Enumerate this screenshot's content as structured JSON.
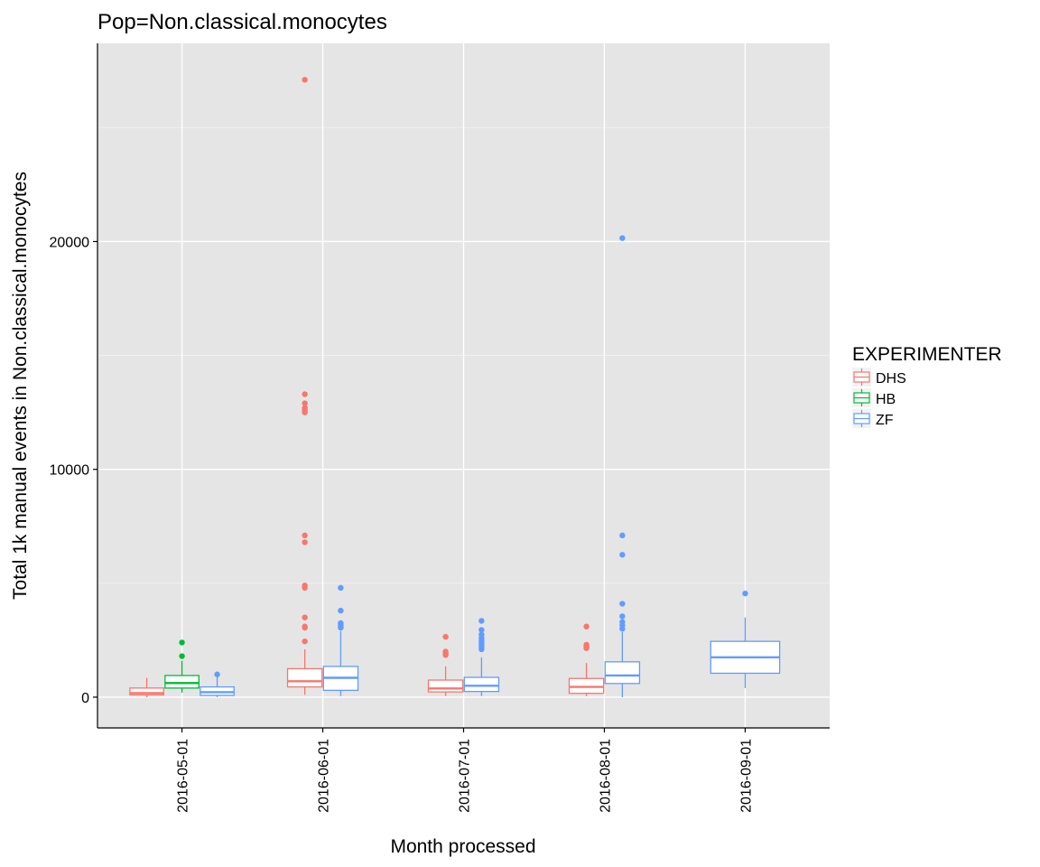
{
  "chart_data": {
    "type": "box",
    "title": "Pop=Non.classical.monocytes",
    "xlabel": "Month processed",
    "ylabel": "Total 1k manual events in Non.classical.monocytes",
    "categories": [
      "2016-05-01",
      "2016-06-01",
      "2016-07-01",
      "2016-08-01",
      "2016-09-01"
    ],
    "ylim": [
      -1350,
      28700
    ],
    "yticks": [
      0,
      10000,
      20000
    ],
    "y_gridlines_minor": [
      5000,
      15000,
      25000
    ],
    "grid": true,
    "legend": {
      "title": "EXPERIMENTER",
      "position": "right",
      "entries": [
        "DHS",
        "HB",
        "ZF"
      ]
    },
    "colors": {
      "DHS": "#F8766D",
      "HB": "#00BA38",
      "ZF": "#619CFF"
    },
    "series": [
      {
        "name": "DHS",
        "boxes": [
          {
            "category": "2016-05-01",
            "min": 0,
            "q1": 100,
            "median": 180,
            "q3": 400,
            "max": 850,
            "outliers": []
          },
          {
            "category": "2016-06-01",
            "min": 100,
            "q1": 450,
            "median": 700,
            "q3": 1250,
            "max": 2100,
            "outliers": [
              2450,
              3050,
              3100,
              3500,
              4800,
              4900,
              6800,
              7100,
              12500,
              12600,
              12700,
              12900,
              13300,
              27100
            ]
          },
          {
            "category": "2016-07-01",
            "min": 50,
            "q1": 230,
            "median": 380,
            "q3": 750,
            "max": 1350,
            "outliers": [
              1850,
              1900,
              2000,
              2650
            ]
          },
          {
            "category": "2016-08-01",
            "min": 50,
            "q1": 170,
            "median": 450,
            "q3": 820,
            "max": 1500,
            "outliers": [
              2150,
              2200,
              2250,
              2300,
              3100
            ]
          }
        ]
      },
      {
        "name": "HB",
        "boxes": [
          {
            "category": "2016-05-01",
            "min": 200,
            "q1": 400,
            "median": 620,
            "q3": 950,
            "max": 1600,
            "outliers": [
              1800,
              2400
            ]
          }
        ]
      },
      {
        "name": "ZF",
        "boxes": [
          {
            "category": "2016-05-01",
            "min": 0,
            "q1": 80,
            "median": 220,
            "q3": 450,
            "max": 950,
            "outliers": [
              1000
            ]
          },
          {
            "category": "2016-06-01",
            "min": 50,
            "q1": 300,
            "median": 850,
            "q3": 1350,
            "max": 2900,
            "outliers": [
              3050,
              3150,
              3250,
              3800,
              4800
            ]
          },
          {
            "category": "2016-07-01",
            "min": 50,
            "q1": 250,
            "median": 500,
            "q3": 870,
            "max": 1750,
            "outliers": [
              2100,
              2200,
              2300,
              2400,
              2500,
              2600,
              2750,
              2950,
              3350
            ]
          },
          {
            "category": "2016-08-01",
            "min": 0,
            "q1": 600,
            "median": 950,
            "q3": 1550,
            "max": 2850,
            "outliers": [
              3000,
              3150,
              3300,
              3550,
              4100,
              6250,
              7100,
              20150
            ]
          },
          {
            "category": "2016-09-01",
            "min": 400,
            "q1": 1050,
            "median": 1750,
            "q3": 2450,
            "max": 3500,
            "outliers": [
              4550
            ]
          }
        ]
      }
    ]
  }
}
